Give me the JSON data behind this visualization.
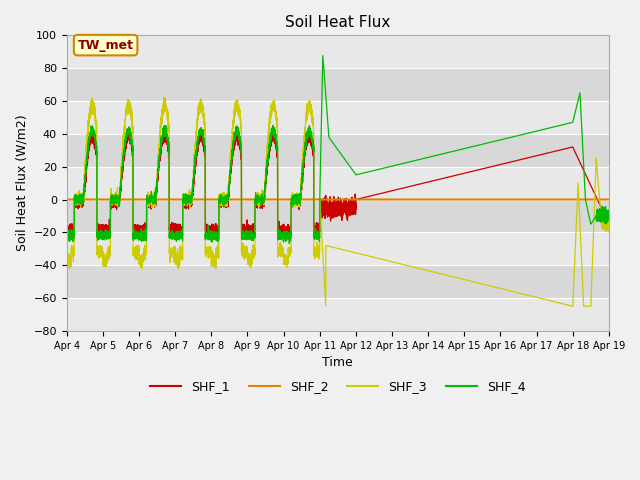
{
  "title": "Soil Heat Flux",
  "ylabel": "Soil Heat Flux (W/m2)",
  "xlabel": "Time",
  "ylim": [
    -80,
    100
  ],
  "annotation_text": "TW_met",
  "annotation_color": "#8b0000",
  "annotation_bg": "#ffffcc",
  "annotation_border": "#cc8800",
  "bg_color": "#f0f0f0",
  "plot_bg": "#f0f0f0",
  "legend": [
    "SHF_1",
    "SHF_2",
    "SHF_3",
    "SHF_4"
  ],
  "colors": [
    "#cc0000",
    "#e08000",
    "#cccc00",
    "#00bb00"
  ],
  "grid_color": "#ffffff",
  "title_fontsize": 11,
  "tick_fontsize": 8,
  "ylabel_fontsize": 9,
  "xlabel_fontsize": 9,
  "legend_fontsize": 9
}
